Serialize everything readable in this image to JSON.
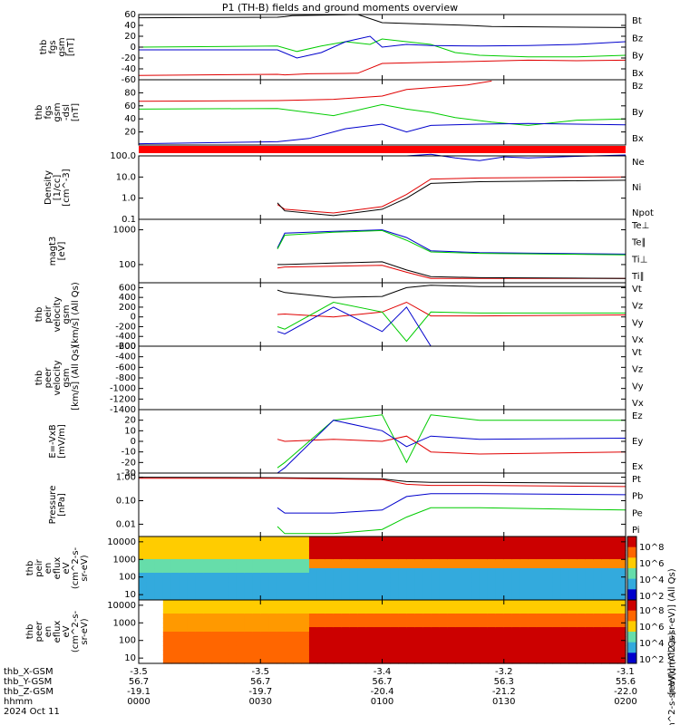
{
  "figure": {
    "title": "P1 (TH-B) fields and ground moments overview"
  },
  "colors": {
    "black": "#000000",
    "red": "#e00000",
    "green": "#00cc00",
    "blue": "#0000cc"
  },
  "chart_data": [
    {
      "type": "line",
      "panel_id": "fgs_gsm_1",
      "ylabel_lines": [
        "thb",
        "fgs",
        "gsm",
        "[nT]"
      ],
      "ylim": [
        -60,
        60
      ],
      "yticks": [
        "60",
        "40",
        "20",
        "0",
        "-20",
        "-40",
        "-60"
      ],
      "series": [
        {
          "name": "Bt",
          "color": "#000000",
          "x": [
            0,
            0.57,
            0.6,
            0.63,
            0.9,
            1.0,
            1.2,
            1.35,
            1.45,
            2.0
          ],
          "y": [
            54,
            55,
            56,
            58,
            60,
            45,
            42,
            40,
            38,
            36
          ]
        },
        {
          "name": "Bz",
          "color": "#e00000",
          "x": [
            0,
            0.57,
            0.6,
            0.7,
            0.9,
            1.0,
            1.2,
            1.4,
            1.6,
            1.8,
            2.0
          ],
          "y": [
            -52,
            -50,
            -51,
            -49,
            -48,
            -30,
            -28,
            -26,
            -24,
            -25,
            -24
          ]
        },
        {
          "name": "By",
          "color": "#00cc00",
          "x": [
            0,
            0.57,
            0.65,
            0.75,
            0.85,
            0.95,
            1.0,
            1.1,
            1.2,
            1.3,
            1.4,
            1.6,
            1.8,
            2.0
          ],
          "y": [
            0,
            2,
            -8,
            2,
            10,
            5,
            15,
            10,
            5,
            -10,
            -15,
            -18,
            -18,
            -15
          ]
        },
        {
          "name": "Bx",
          "color": "#0000cc",
          "x": [
            0,
            0.57,
            0.65,
            0.75,
            0.85,
            0.95,
            1.0,
            1.1,
            1.2,
            1.4,
            1.6,
            1.8,
            2.0
          ],
          "y": [
            -5,
            -5,
            -20,
            -10,
            10,
            20,
            0,
            5,
            3,
            2,
            3,
            5,
            10
          ]
        }
      ]
    },
    {
      "type": "line",
      "panel_id": "fgs_gsm_2",
      "ylabel_lines": [
        "thb",
        "fgs",
        "gsm",
        "-dsl",
        "[nT]"
      ],
      "ylim": [
        0,
        100
      ],
      "yticks": [
        "80",
        "60",
        "40",
        "20"
      ],
      "series": [
        {
          "name": "Bz",
          "color": "#e00000",
          "x": [
            0,
            0.57,
            0.8,
            1.0,
            1.1,
            1.2,
            1.35,
            1.45
          ],
          "y": [
            67,
            68,
            70,
            75,
            85,
            88,
            92,
            98
          ]
        },
        {
          "name": "By",
          "color": "#00cc00",
          "x": [
            0,
            0.57,
            0.8,
            1.0,
            1.1,
            1.2,
            1.3,
            1.45,
            1.6,
            1.8,
            2.0
          ],
          "y": [
            55,
            56,
            45,
            62,
            55,
            50,
            42,
            35,
            30,
            38,
            40
          ]
        },
        {
          "name": "Bx",
          "color": "#0000cc",
          "x": [
            0,
            0.57,
            0.7,
            0.85,
            1.0,
            1.1,
            1.2,
            1.4,
            1.6,
            1.8,
            2.0
          ],
          "y": [
            2,
            5,
            10,
            25,
            32,
            20,
            30,
            32,
            33,
            32,
            31
          ]
        }
      ]
    },
    {
      "type": "line",
      "panel_id": "density",
      "ylabel_lines": [
        "Density",
        "[1/cc]",
        "[cm^-3]"
      ],
      "ylog": true,
      "ylim": [
        0.1,
        100
      ],
      "yticks": [
        "100.0",
        "10.0",
        "1.0",
        "0.1"
      ],
      "series": [
        {
          "name": "Ne",
          "color": "#e00000",
          "x": [
            0.57,
            0.6,
            0.8,
            1.0,
            1.1,
            1.2,
            1.4,
            2.0
          ],
          "y": [
            0.5,
            0.3,
            0.2,
            0.4,
            1.5,
            8,
            9,
            10
          ]
        },
        {
          "name": "Ni",
          "color": "#000000",
          "x": [
            0.57,
            0.6,
            0.8,
            1.0,
            1.1,
            1.2,
            1.4,
            2.0
          ],
          "y": [
            0.6,
            0.25,
            0.15,
            0.3,
            1.0,
            5,
            6,
            7
          ]
        },
        {
          "name": "Npot",
          "color": "#0000cc",
          "x": [
            1.1,
            1.2,
            1.3,
            1.4,
            1.5,
            1.6,
            1.8,
            2.0
          ],
          "y": [
            100,
            120,
            80,
            60,
            90,
            80,
            95,
            110
          ]
        }
      ]
    },
    {
      "type": "line",
      "panel_id": "temperature",
      "ylabel_lines": [
        "magt3",
        "[eV]"
      ],
      "ylog": true,
      "ylim": [
        30,
        2000
      ],
      "yticks": [
        "1000",
        "100"
      ],
      "series": [
        {
          "name": "Te⊥",
          "color": "#e00000",
          "x": [
            0.57,
            0.6,
            0.8,
            1.0,
            1.1,
            1.2,
            1.4,
            2.0
          ],
          "y": [
            80,
            85,
            90,
            95,
            60,
            40,
            40,
            40
          ]
        },
        {
          "name": "Te∥",
          "color": "#000000",
          "x": [
            0.57,
            0.6,
            0.8,
            1.0,
            1.1,
            1.2,
            1.4,
            2.0
          ],
          "y": [
            100,
            100,
            110,
            120,
            70,
            45,
            42,
            40
          ]
        },
        {
          "name": "Ti⊥",
          "color": "#0000cc",
          "x": [
            0.57,
            0.6,
            0.8,
            1.0,
            1.1,
            1.2,
            1.4,
            2.0
          ],
          "y": [
            300,
            800,
            900,
            1000,
            600,
            250,
            220,
            200
          ]
        },
        {
          "name": "Ti∥",
          "color": "#00cc00",
          "x": [
            0.57,
            0.6,
            0.8,
            1.0,
            1.1,
            1.2,
            1.4,
            2.0
          ],
          "y": [
            280,
            700,
            850,
            950,
            500,
            230,
            210,
            190
          ]
        }
      ]
    },
    {
      "type": "line",
      "panel_id": "peir_velocity",
      "ylabel_lines": [
        "thb",
        "peir",
        "velocity",
        "gsm",
        "[km/s] (All Qs)"
      ],
      "ylim": [
        -600,
        700
      ],
      "yticks": [
        "600",
        "400",
        "200",
        "0",
        "-200",
        "-400",
        "-600"
      ],
      "series": [
        {
          "name": "Vt",
          "color": "#000000",
          "x": [
            0.57,
            0.6,
            0.8,
            1.0,
            1.1,
            1.2,
            1.4,
            2.0
          ],
          "y": [
            550,
            500,
            400,
            420,
            600,
            650,
            620,
            620
          ]
        },
        {
          "name": "Vz",
          "color": "#e00000",
          "x": [
            0.57,
            0.6,
            0.8,
            1.0,
            1.1,
            1.2,
            1.4,
            2.0
          ],
          "y": [
            50,
            60,
            0,
            100,
            300,
            20,
            20,
            40
          ]
        },
        {
          "name": "Vy",
          "color": "#00cc00",
          "x": [
            0.57,
            0.6,
            0.8,
            1.0,
            1.1,
            1.2,
            1.4,
            2.0
          ],
          "y": [
            -200,
            -250,
            300,
            100,
            -500,
            100,
            80,
            80
          ]
        },
        {
          "name": "Vx",
          "color": "#0000cc",
          "x": [
            0.57,
            0.6,
            0.8,
            1.0,
            1.1,
            1.2,
            1.4,
            2.0
          ],
          "y": [
            -300,
            -350,
            200,
            -300,
            200,
            -600,
            -600,
            -600
          ]
        }
      ]
    },
    {
      "type": "line",
      "panel_id": "peer_velocity",
      "ylabel_lines": [
        "thb",
        "peer",
        "velocity",
        "gsm",
        "[km/s] (All Qs)"
      ],
      "ylim": [
        -1400,
        -200
      ],
      "yticks": [
        "-200",
        "-400",
        "-600",
        "-800",
        "-1000",
        "-1200",
        "-1400"
      ],
      "series": [
        {
          "name": "Vt",
          "color": "#000000",
          "x": [],
          "y": []
        },
        {
          "name": "Vz",
          "color": "#e00000",
          "x": [],
          "y": []
        },
        {
          "name": "Vy",
          "color": "#00cc00",
          "x": [],
          "y": []
        },
        {
          "name": "Vx",
          "color": "#0000cc",
          "x": [],
          "y": []
        }
      ]
    },
    {
      "type": "line",
      "panel_id": "efield",
      "ylabel_lines": [
        "E=-VxB",
        "[mV/m]"
      ],
      "ylim": [
        -30,
        30
      ],
      "yticks": [
        "20",
        "10",
        "0",
        "-10",
        "-20",
        "-30"
      ],
      "series": [
        {
          "name": "Ez",
          "color": "#e00000",
          "x": [
            0.57,
            0.6,
            0.8,
            1.0,
            1.1,
            1.2,
            1.4,
            2.0
          ],
          "y": [
            2,
            0,
            2,
            0,
            5,
            -10,
            -12,
            -10
          ]
        },
        {
          "name": "Ey",
          "color": "#00cc00",
          "x": [
            0.57,
            0.6,
            0.8,
            1.0,
            1.1,
            1.2,
            1.4,
            2.0
          ],
          "y": [
            -25,
            -20,
            20,
            25,
            -20,
            25,
            20,
            20
          ]
        },
        {
          "name": "Ex",
          "color": "#0000cc",
          "x": [
            0.57,
            0.6,
            0.8,
            1.0,
            1.1,
            1.2,
            1.4,
            2.0
          ],
          "y": [
            -30,
            -25,
            20,
            10,
            -5,
            5,
            2,
            3
          ]
        }
      ]
    },
    {
      "type": "line",
      "panel_id": "pressure",
      "ylabel_lines": [
        "Pressure",
        "[nPa]"
      ],
      "ylog": true,
      "ylim": [
        0.003,
        1.5
      ],
      "yticks": [
        "1.00",
        "0.10",
        "0.01"
      ],
      "series": [
        {
          "name": "Pt",
          "color": "#000000",
          "x": [
            0,
            0.57,
            0.8,
            1.0,
            1.1,
            1.2,
            1.4,
            2.0
          ],
          "y": [
            1.0,
            0.95,
            0.9,
            0.85,
            0.65,
            0.6,
            0.6,
            0.55
          ]
        },
        {
          "name": "Pb",
          "color": "#e00000",
          "x": [
            0,
            0.57,
            0.8,
            1.0,
            1.1,
            1.2,
            1.4,
            2.0
          ],
          "y": [
            0.9,
            0.9,
            0.85,
            0.8,
            0.5,
            0.45,
            0.45,
            0.4
          ]
        },
        {
          "name": "Pe",
          "color": "#00cc00",
          "x": [
            0.57,
            0.6,
            0.8,
            1.0,
            1.1,
            1.2,
            1.4,
            2.0
          ],
          "y": [
            0.008,
            0.004,
            0.004,
            0.006,
            0.02,
            0.05,
            0.05,
            0.04
          ]
        },
        {
          "name": "Pi",
          "color": "#0000cc",
          "x": [
            0.57,
            0.6,
            0.8,
            1.0,
            1.1,
            1.2,
            1.4,
            2.0
          ],
          "y": [
            0.05,
            0.03,
            0.03,
            0.04,
            0.15,
            0.2,
            0.2,
            0.18
          ]
        }
      ]
    },
    {
      "type": "heatmap",
      "panel_id": "peir_spectrogram",
      "ylabel_lines": [
        "thb",
        "peir",
        "en",
        "eflux",
        "eV",
        "(cm^2-s-",
        "sr-eV)"
      ],
      "ylog": true,
      "ylim": [
        5,
        20000
      ],
      "yticks": [
        "10000",
        "1000",
        "100",
        "10"
      ],
      "colorbar_label": "[eV/(cm^2-s-sr-eV)] (All Qs)",
      "colorbar_ticks": [
        "10^8",
        "10^6",
        "10^4",
        "10^2"
      ]
    },
    {
      "type": "heatmap",
      "panel_id": "peer_spectrogram",
      "ylabel_lines": [
        "thb",
        "peer",
        "en",
        "eflux",
        "eV",
        "(cm^2-s-",
        "sr-eV)"
      ],
      "ylog": true,
      "ylim": [
        5,
        20000
      ],
      "yticks": [
        "10000",
        "1000",
        "100",
        "10"
      ],
      "colorbar_label": "[eV/(cm^2-s-sr-eV)] (All Qs)",
      "colorbar_ticks": [
        "10^8",
        "10^6",
        "10^4",
        "10^2"
      ]
    }
  ],
  "xaxis": {
    "rows": [
      {
        "label": "thb_X-GSM",
        "values": [
          "-3.5",
          "-3.5",
          "-3.4",
          "-3.2",
          "-3.1"
        ]
      },
      {
        "label": "thb_Y-GSM",
        "values": [
          "56.7",
          "56.7",
          "56.7",
          "56.3",
          "55.6"
        ]
      },
      {
        "label": "thb_Z-GSM",
        "values": [
          "-19.1",
          "-19.7",
          "-20.4",
          "-21.2",
          "-22.0"
        ]
      },
      {
        "label": "hhmm",
        "values": [
          "0000",
          "0030",
          "0100",
          "0130",
          "0200"
        ]
      }
    ],
    "date": "2024 Oct 11"
  }
}
